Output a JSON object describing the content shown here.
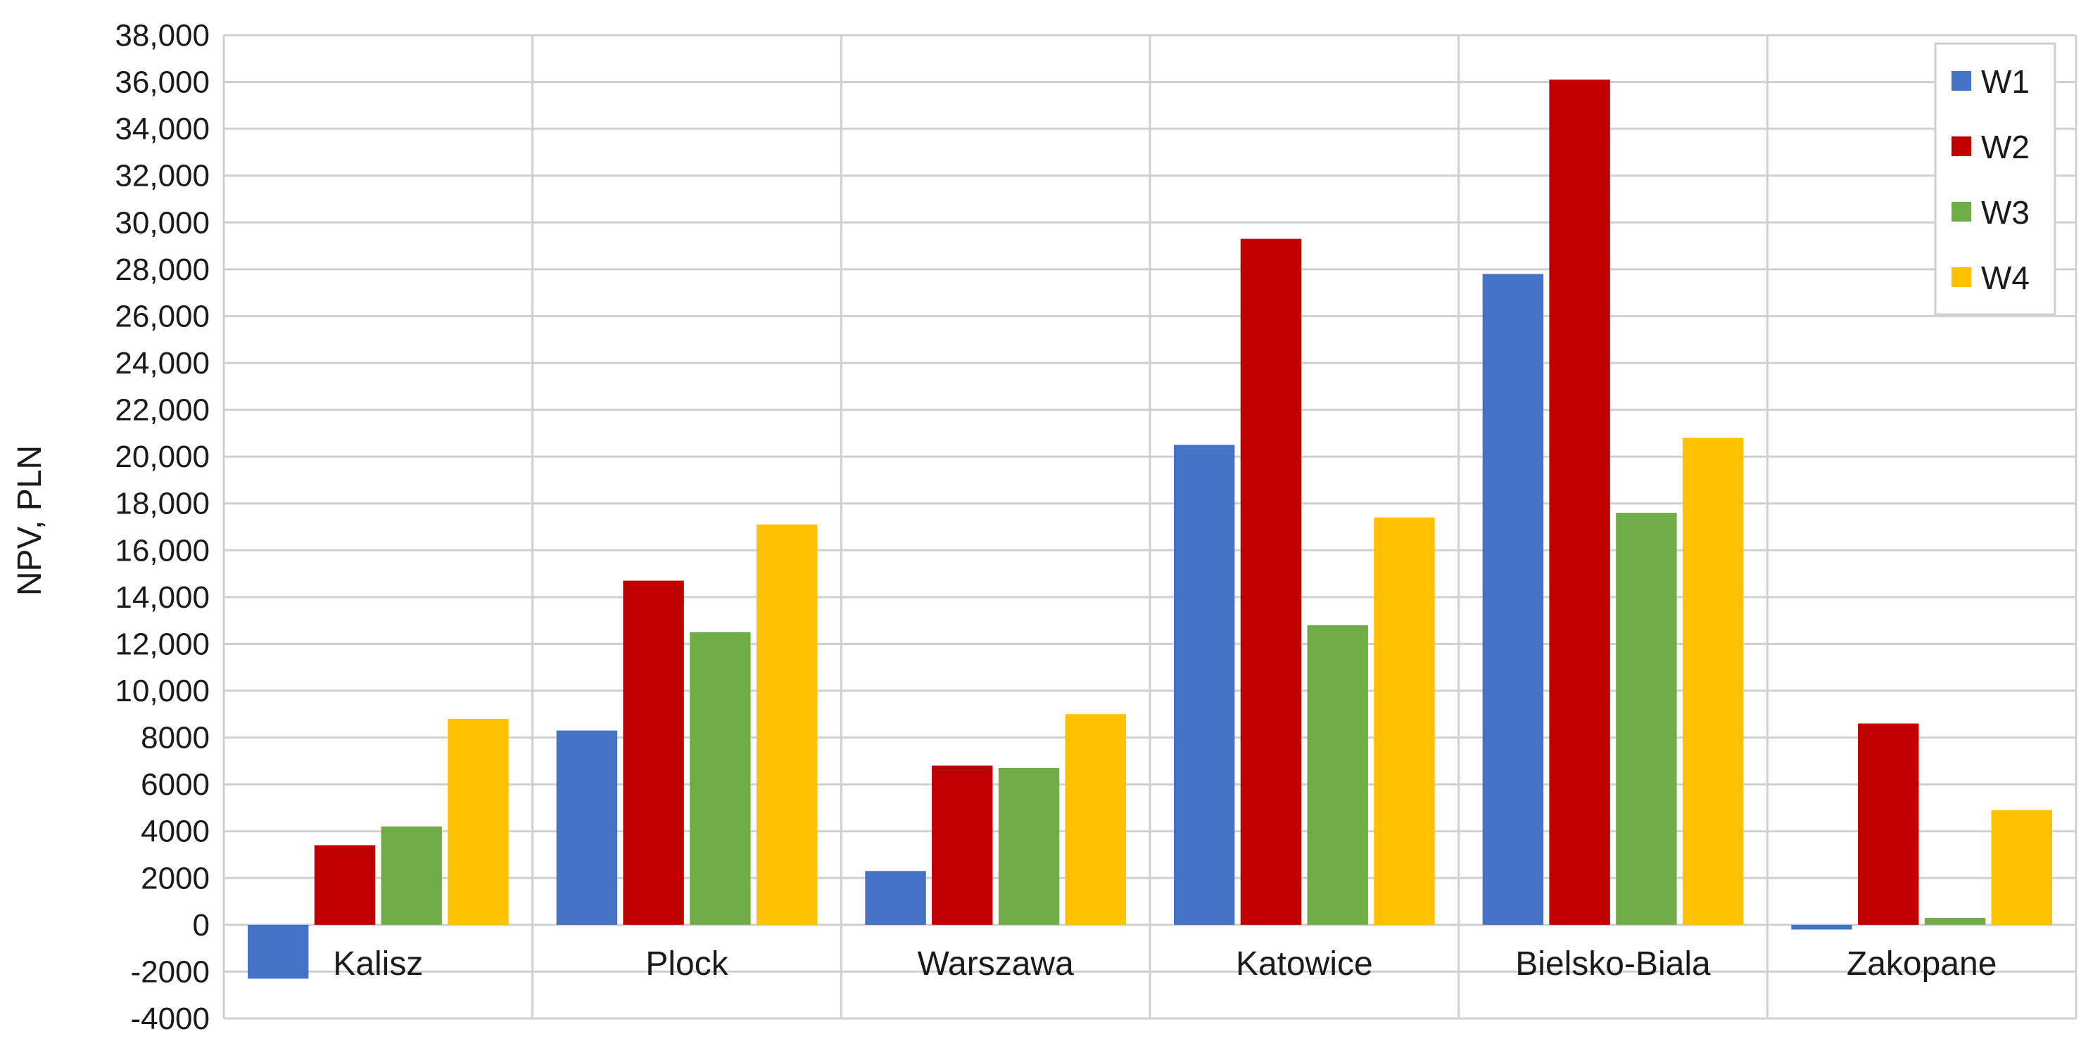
{
  "chart_data": {
    "type": "bar",
    "title": "",
    "xlabel": "",
    "ylabel": "NPV, PLN",
    "categories": [
      "Kalisz",
      "Plock",
      "Warszawa",
      "Katowice",
      "Bielsko-Biala",
      "Zakopane"
    ],
    "ylim": [
      -4000,
      38000
    ],
    "yticks": [
      -4000,
      -2000,
      0,
      2000,
      4000,
      6000,
      8000,
      10000,
      12000,
      14000,
      16000,
      18000,
      20000,
      22000,
      24000,
      26000,
      28000,
      30000,
      32000,
      34000,
      36000,
      38000
    ],
    "ytick_labels": [
      "-4000",
      "-2000",
      "0",
      "2000",
      "4000",
      "6000",
      "8000",
      "10,000",
      "12,000",
      "14,000",
      "16,000",
      "18,000",
      "20,000",
      "22,000",
      "24,000",
      "26,000",
      "28,000",
      "30,000",
      "32,000",
      "34,000",
      "36,000",
      "38,000"
    ],
    "grid": true,
    "legend_position": "top-right",
    "series": [
      {
        "name": "W1",
        "color": "#4472c4",
        "values": [
          -2300,
          8300,
          2300,
          20500,
          27800,
          -200
        ]
      },
      {
        "name": "W2",
        "color": "#c00000",
        "values": [
          3400,
          14700,
          6800,
          29300,
          36100,
          8600
        ]
      },
      {
        "name": "W3",
        "color": "#70ad47",
        "values": [
          4200,
          12500,
          6700,
          12800,
          17600,
          300
        ]
      },
      {
        "name": "W4",
        "color": "#ffc000",
        "values": [
          8800,
          17100,
          9000,
          17400,
          20800,
          4900
        ]
      }
    ]
  }
}
